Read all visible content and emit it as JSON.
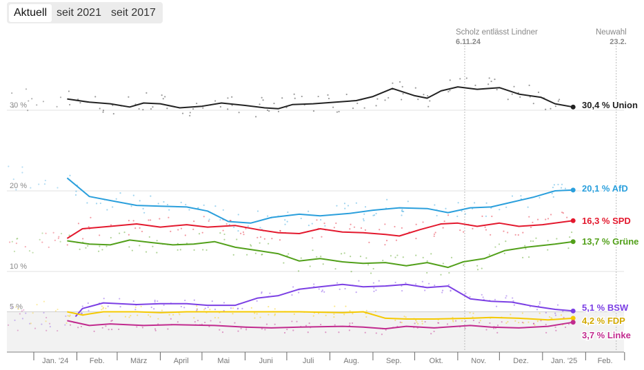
{
  "tabs": [
    {
      "label": "Aktuell",
      "active": true
    },
    {
      "label": "seit 2021",
      "active": false
    },
    {
      "label": "seit 2017",
      "active": false
    }
  ],
  "chart_data": {
    "type": "line",
    "ylabel": "%",
    "ylim": [
      0,
      34
    ],
    "yticks": [
      {
        "value": 30,
        "label": "30 %"
      },
      {
        "value": 20,
        "label": "20 %"
      },
      {
        "value": 10,
        "label": "10 %"
      },
      {
        "value": 5,
        "label": "5 %"
      }
    ],
    "xlim": [
      "2023-12-10",
      "2025-03-01"
    ],
    "months": [
      {
        "start": "2024-01-01",
        "label": "Jan. '24"
      },
      {
        "start": "2024-02-01",
        "label": "Feb."
      },
      {
        "start": "2024-03-01",
        "label": "März"
      },
      {
        "start": "2024-04-01",
        "label": "April"
      },
      {
        "start": "2024-05-01",
        "label": "Mai"
      },
      {
        "start": "2024-06-01",
        "label": "Juni"
      },
      {
        "start": "2024-07-01",
        "label": "Juli"
      },
      {
        "start": "2024-08-01",
        "label": "Aug."
      },
      {
        "start": "2024-09-01",
        "label": "Sep."
      },
      {
        "start": "2024-10-01",
        "label": "Okt."
      },
      {
        "start": "2024-11-01",
        "label": "Nov."
      },
      {
        "start": "2024-12-01",
        "label": "Dez."
      },
      {
        "start": "2025-01-01",
        "label": "Jan. '25"
      },
      {
        "start": "2025-02-01",
        "label": "Feb."
      },
      {
        "start": "2025-03-01",
        "label": ""
      }
    ],
    "events": [
      {
        "date": "2024-11-06",
        "title": "Scholz entlässt Lindner",
        "date_label": "6.11.24",
        "align": "start"
      },
      {
        "date": "2025-02-23",
        "title": "Neuwahl",
        "date_label": "23.2.",
        "align": "end"
      }
    ],
    "threshold": 5,
    "series": [
      {
        "name": "Union",
        "color": "#222222",
        "label_color": "#222222",
        "final": "30,4 %",
        "points": [
          [
            "2024-01-25",
            31.4
          ],
          [
            "2024-02-10",
            31.0
          ],
          [
            "2024-02-25",
            30.8
          ],
          [
            "2024-03-10",
            30.4
          ],
          [
            "2024-03-20",
            30.9
          ],
          [
            "2024-04-01",
            30.8
          ],
          [
            "2024-04-15",
            30.3
          ],
          [
            "2024-05-01",
            30.5
          ],
          [
            "2024-05-15",
            30.9
          ],
          [
            "2024-06-01",
            30.6
          ],
          [
            "2024-06-15",
            30.3
          ],
          [
            "2024-06-25",
            30.2
          ],
          [
            "2024-07-05",
            30.7
          ],
          [
            "2024-07-20",
            30.8
          ],
          [
            "2024-08-05",
            31.0
          ],
          [
            "2024-08-20",
            31.2
          ],
          [
            "2024-09-01",
            31.7
          ],
          [
            "2024-09-15",
            32.7
          ],
          [
            "2024-10-01",
            31.8
          ],
          [
            "2024-10-10",
            31.5
          ],
          [
            "2024-10-20",
            32.4
          ],
          [
            "2024-11-01",
            32.9
          ],
          [
            "2024-11-15",
            32.6
          ],
          [
            "2024-12-01",
            32.8
          ],
          [
            "2024-12-15",
            32.0
          ],
          [
            "2024-12-31",
            31.6
          ],
          [
            "2025-01-10",
            30.8
          ],
          [
            "2025-01-23",
            30.4
          ]
        ]
      },
      {
        "name": "AfD",
        "color": "#2a9fdc",
        "label_color": "#2a9fdc",
        "final": "20,1 %",
        "points": [
          [
            "2024-01-25",
            21.6
          ],
          [
            "2024-02-10",
            19.3
          ],
          [
            "2024-02-25",
            18.8
          ],
          [
            "2024-03-15",
            18.2
          ],
          [
            "2024-04-01",
            18.1
          ],
          [
            "2024-04-20",
            18.0
          ],
          [
            "2024-05-05",
            17.5
          ],
          [
            "2024-05-20",
            16.2
          ],
          [
            "2024-06-05",
            16.0
          ],
          [
            "2024-06-20",
            16.7
          ],
          [
            "2024-07-10",
            17.1
          ],
          [
            "2024-07-25",
            16.9
          ],
          [
            "2024-08-15",
            17.2
          ],
          [
            "2024-09-01",
            17.6
          ],
          [
            "2024-09-20",
            17.9
          ],
          [
            "2024-10-10",
            17.8
          ],
          [
            "2024-10-25",
            17.3
          ],
          [
            "2024-11-10",
            17.9
          ],
          [
            "2024-11-25",
            18.0
          ],
          [
            "2024-12-10",
            18.6
          ],
          [
            "2024-12-25",
            19.2
          ],
          [
            "2025-01-10",
            20.0
          ],
          [
            "2025-01-23",
            20.1
          ]
        ]
      },
      {
        "name": "SPD",
        "color": "#e3182d",
        "label_color": "#e3182d",
        "final": "16,3 %",
        "points": [
          [
            "2024-01-25",
            14.1
          ],
          [
            "2024-02-05",
            15.3
          ],
          [
            "2024-02-25",
            15.6
          ],
          [
            "2024-03-15",
            15.9
          ],
          [
            "2024-04-01",
            15.5
          ],
          [
            "2024-04-20",
            15.8
          ],
          [
            "2024-05-05",
            15.5
          ],
          [
            "2024-05-25",
            15.7
          ],
          [
            "2024-06-10",
            15.2
          ],
          [
            "2024-06-25",
            14.8
          ],
          [
            "2024-07-10",
            14.7
          ],
          [
            "2024-07-25",
            15.3
          ],
          [
            "2024-08-10",
            14.9
          ],
          [
            "2024-08-25",
            14.8
          ],
          [
            "2024-09-10",
            14.6
          ],
          [
            "2024-09-20",
            14.4
          ],
          [
            "2024-10-05",
            15.2
          ],
          [
            "2024-10-20",
            15.9
          ],
          [
            "2024-11-01",
            16.0
          ],
          [
            "2024-11-15",
            15.6
          ],
          [
            "2024-12-01",
            16.0
          ],
          [
            "2024-12-15",
            15.6
          ],
          [
            "2025-01-01",
            15.8
          ],
          [
            "2025-01-23",
            16.3
          ]
        ]
      },
      {
        "name": "Grüne",
        "color": "#52a01a",
        "label_color": "#52a01a",
        "final": "13,7 %",
        "points": [
          [
            "2024-01-25",
            13.8
          ],
          [
            "2024-02-10",
            13.4
          ],
          [
            "2024-02-25",
            13.3
          ],
          [
            "2024-03-10",
            13.9
          ],
          [
            "2024-03-25",
            13.6
          ],
          [
            "2024-04-10",
            13.3
          ],
          [
            "2024-04-25",
            13.4
          ],
          [
            "2024-05-10",
            13.7
          ],
          [
            "2024-05-25",
            13.0
          ],
          [
            "2024-06-10",
            12.6
          ],
          [
            "2024-06-25",
            12.2
          ],
          [
            "2024-07-10",
            11.3
          ],
          [
            "2024-07-25",
            11.6
          ],
          [
            "2024-08-10",
            11.2
          ],
          [
            "2024-08-25",
            11.0
          ],
          [
            "2024-09-10",
            11.1
          ],
          [
            "2024-09-25",
            10.7
          ],
          [
            "2024-10-10",
            11.1
          ],
          [
            "2024-10-25",
            10.5
          ],
          [
            "2024-11-05",
            11.2
          ],
          [
            "2024-11-20",
            11.6
          ],
          [
            "2024-12-05",
            12.6
          ],
          [
            "2024-12-20",
            13.0
          ],
          [
            "2025-01-10",
            13.4
          ],
          [
            "2025-01-23",
            13.7
          ]
        ]
      },
      {
        "name": "BSW",
        "color": "#7b3fe4",
        "label_color": "#7b3fe4",
        "final": "5,1 %",
        "points": [
          [
            "2024-01-31",
            4.4
          ],
          [
            "2024-02-05",
            5.4
          ],
          [
            "2024-02-20",
            6.1
          ],
          [
            "2024-03-15",
            5.9
          ],
          [
            "2024-04-01",
            6.0
          ],
          [
            "2024-04-20",
            6.0
          ],
          [
            "2024-05-05",
            5.8
          ],
          [
            "2024-05-25",
            5.8
          ],
          [
            "2024-06-10",
            6.7
          ],
          [
            "2024-06-25",
            7.0
          ],
          [
            "2024-07-10",
            7.8
          ],
          [
            "2024-07-25",
            8.1
          ],
          [
            "2024-08-10",
            8.4
          ],
          [
            "2024-08-25",
            8.1
          ],
          [
            "2024-09-10",
            8.2
          ],
          [
            "2024-09-25",
            8.4
          ],
          [
            "2024-10-10",
            8.0
          ],
          [
            "2024-10-25",
            8.2
          ],
          [
            "2024-11-10",
            6.6
          ],
          [
            "2024-11-25",
            6.3
          ],
          [
            "2024-12-10",
            6.2
          ],
          [
            "2024-12-25",
            5.7
          ],
          [
            "2025-01-10",
            5.3
          ],
          [
            "2025-01-23",
            5.1
          ]
        ]
      },
      {
        "name": "FDP",
        "color": "#f5c900",
        "label_color": "#d2a800",
        "final": "4,2 %",
        "points": [
          [
            "2024-01-25",
            5.0
          ],
          [
            "2024-02-05",
            4.6
          ],
          [
            "2024-02-20",
            5.0
          ],
          [
            "2024-03-15",
            5.0
          ],
          [
            "2024-04-01",
            4.9
          ],
          [
            "2024-04-20",
            5.0
          ],
          [
            "2024-05-10",
            5.0
          ],
          [
            "2024-06-10",
            5.0
          ],
          [
            "2024-07-10",
            5.0
          ],
          [
            "2024-08-10",
            4.9
          ],
          [
            "2024-08-25",
            5.0
          ],
          [
            "2024-09-10",
            4.2
          ],
          [
            "2024-09-25",
            4.1
          ],
          [
            "2024-10-15",
            4.1
          ],
          [
            "2024-11-10",
            4.2
          ],
          [
            "2024-11-25",
            4.3
          ],
          [
            "2024-12-15",
            4.2
          ],
          [
            "2025-01-05",
            4.0
          ],
          [
            "2025-01-23",
            4.2
          ]
        ]
      },
      {
        "name": "Linke",
        "color": "#c12a8e",
        "label_color": "#c12a8e",
        "final": "3,7 %",
        "points": [
          [
            "2024-01-25",
            3.9
          ],
          [
            "2024-02-10",
            3.3
          ],
          [
            "2024-02-25",
            3.5
          ],
          [
            "2024-03-20",
            3.3
          ],
          [
            "2024-04-10",
            3.4
          ],
          [
            "2024-05-10",
            3.3
          ],
          [
            "2024-06-01",
            3.1
          ],
          [
            "2024-06-20",
            3.0
          ],
          [
            "2024-07-10",
            3.1
          ],
          [
            "2024-08-10",
            3.2
          ],
          [
            "2024-08-25",
            3.1
          ],
          [
            "2024-09-10",
            2.9
          ],
          [
            "2024-09-25",
            3.2
          ],
          [
            "2024-10-15",
            3.0
          ],
          [
            "2024-11-10",
            3.3
          ],
          [
            "2024-11-25",
            3.1
          ],
          [
            "2024-12-15",
            3.0
          ],
          [
            "2025-01-05",
            3.2
          ],
          [
            "2025-01-23",
            3.7
          ]
        ]
      }
    ]
  }
}
